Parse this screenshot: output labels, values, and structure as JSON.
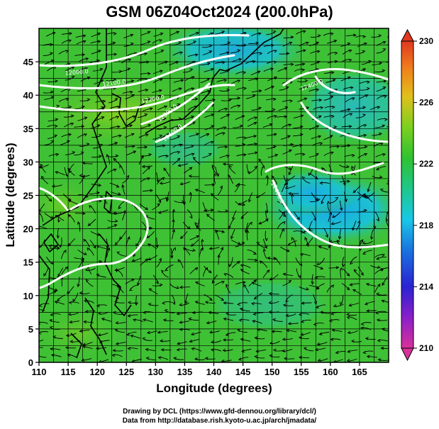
{
  "title": "GSM 06Z04Oct2024 (200.0hPa)",
  "credits": {
    "line1": "Drawing by DCL (https://www.gfd-dennou.org/library/dcl/)",
    "line2": "Data from http://database.rish.kyoto-u.ac.jp/arch/jmadata/"
  },
  "map": {
    "x_axis_label": "Longitude (degrees)",
    "y_axis_label": "Latitude  (degrees)",
    "lon_range": [
      110,
      170
    ],
    "lat_range": [
      0,
      50
    ],
    "x_ticks": [
      "110",
      "115",
      "120",
      "125",
      "130",
      "135",
      "140",
      "145",
      "150",
      "155",
      "160",
      "165"
    ],
    "y_ticks": [
      "0",
      "5",
      "10",
      "15",
      "20",
      "25",
      "30",
      "35",
      "40",
      "45"
    ],
    "contour_labels": [
      "12000.0",
      "12100.0",
      "12200.0",
      "12300.0",
      "12400.0",
      "12400.0",
      "12400.0"
    ],
    "grid": true
  },
  "colorbar": {
    "min": 210,
    "max": 230,
    "tick_labels": [
      "230",
      "226",
      "222",
      "218",
      "214",
      "210"
    ],
    "colors": [
      "#d8329a",
      "#3b1fd0",
      "#1a74e0",
      "#19c8e6",
      "#1fc78a",
      "#30c230",
      "#7dd020",
      "#e0c01b",
      "#f0801d",
      "#e0381e"
    ]
  },
  "colors": {
    "warm_field": "#3fc135",
    "cool_field": "#1ab6e0",
    "contour": "#ffffff",
    "streamline": "#000000",
    "coastline": "#000000"
  }
}
